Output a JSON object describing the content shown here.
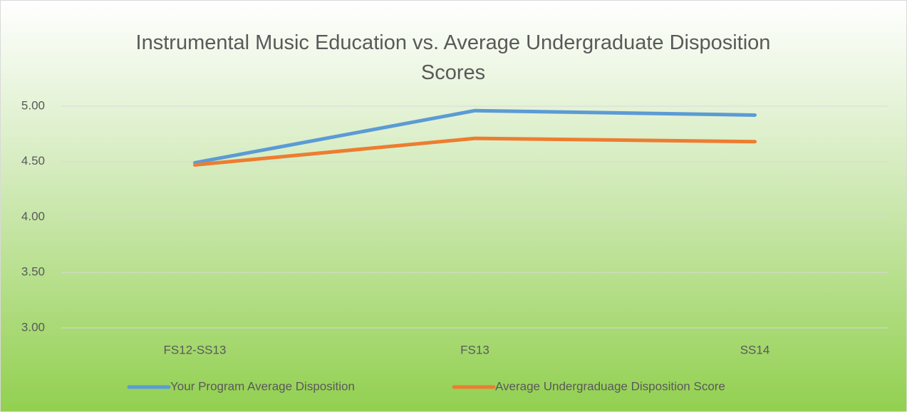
{
  "chart_data": {
    "type": "line",
    "title": "Instrumental Music Education vs. Average Undergraduate Disposition Scores",
    "categories": [
      "FS12-SS13",
      "FS13",
      "SS14"
    ],
    "series": [
      {
        "name": "Your Program Average Disposition",
        "color": "#5b9bd5",
        "values": [
          4.49,
          4.96,
          4.92
        ]
      },
      {
        "name": "Average Undergraduage Disposition Score",
        "color": "#ed7d31",
        "values": [
          4.47,
          4.71,
          4.68
        ]
      }
    ],
    "ylim": [
      3,
      5
    ],
    "yticks": [
      {
        "value": 3,
        "label": "3.00"
      },
      {
        "value": 3.5,
        "label": "3.50"
      },
      {
        "value": 4,
        "label": "4.00"
      },
      {
        "value": 4.5,
        "label": "4.50"
      },
      {
        "value": 5,
        "label": "5.00"
      }
    ],
    "grid": true,
    "legend": "bottom"
  }
}
